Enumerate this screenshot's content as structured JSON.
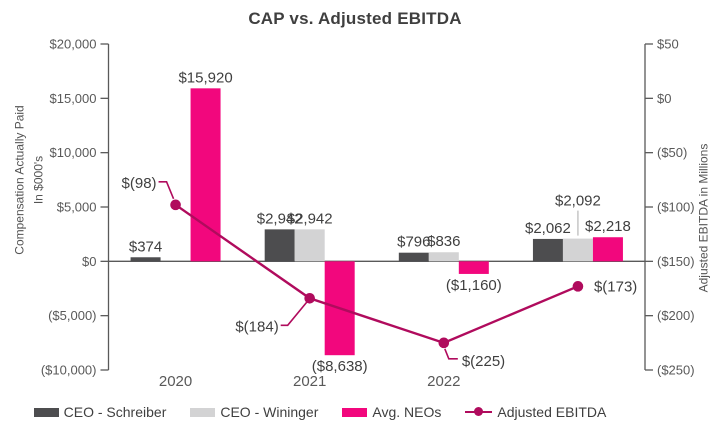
{
  "title": "CAP vs. Adjusted EBITDA",
  "left_axis": {
    "title_lines": [
      "Compensation Actually Paid",
      "In $000's"
    ],
    "ticks": [
      "$20,000",
      "$15,000",
      "$10,000",
      "$5,000",
      "$0",
      "($5,000)",
      "($10,000)"
    ]
  },
  "right_axis": {
    "title": "Adjusted EBITDA in Millions",
    "ticks": [
      "$50",
      "$0",
      "($50)",
      "($100)",
      "($150)",
      "($200)",
      "($250)"
    ]
  },
  "legend": {
    "items": [
      {
        "label": "CEO - Schreiber",
        "swatch": "bar",
        "color": "#4D4D4F"
      },
      {
        "label": "CEO - Wininger",
        "swatch": "bar",
        "color": "#D3D3D4"
      },
      {
        "label": "Avg. NEOs",
        "swatch": "bar",
        "color": "#F2077D"
      },
      {
        "label": "Adjusted EBITDA",
        "swatch": "line-dot",
        "color": "#B00B5D"
      }
    ]
  },
  "chart_data": {
    "type": "bar-line-combo",
    "categories": [
      "2020",
      "2021",
      "2022",
      ""
    ],
    "left_axis_label": "Compensation Actually Paid In $000's",
    "right_axis_label": "Adjusted EBITDA in Millions",
    "left_axis_range": [
      -10000,
      20000
    ],
    "right_axis_range": [
      -250,
      50
    ],
    "grid": false,
    "legend_position": "bottom",
    "series": [
      {
        "name": "CEO - Schreiber",
        "type": "bar",
        "axis": "left",
        "color": "#4D4D4F",
        "values": [
          374,
          2942,
          796,
          2062
        ],
        "labels": [
          "$374",
          "$2,942",
          "$796",
          "$2,062"
        ]
      },
      {
        "name": "CEO - Wininger",
        "type": "bar",
        "axis": "left",
        "color": "#D3D3D4",
        "values": [
          null,
          2942,
          836,
          2092
        ],
        "labels": [
          null,
          "$2,942",
          "$836",
          "$2,092"
        ]
      },
      {
        "name": "Avg. NEOs",
        "type": "bar",
        "axis": "left",
        "color": "#F2077D",
        "values": [
          15920,
          -8638,
          -1160,
          2218
        ],
        "labels": [
          "$15,920",
          "($8,638)",
          "($1,160)",
          "$2,218"
        ]
      },
      {
        "name": "Adjusted EBITDA",
        "type": "line",
        "axis": "right",
        "color": "#B00B5D",
        "values": [
          -98,
          -184,
          -225,
          -173
        ],
        "labels": [
          "$(98)",
          "$(184)",
          "$(225)",
          "$(173)"
        ]
      }
    ],
    "annotations": {
      "raised_bar_label": {
        "series_index": 1,
        "category_index": 3
      }
    }
  }
}
